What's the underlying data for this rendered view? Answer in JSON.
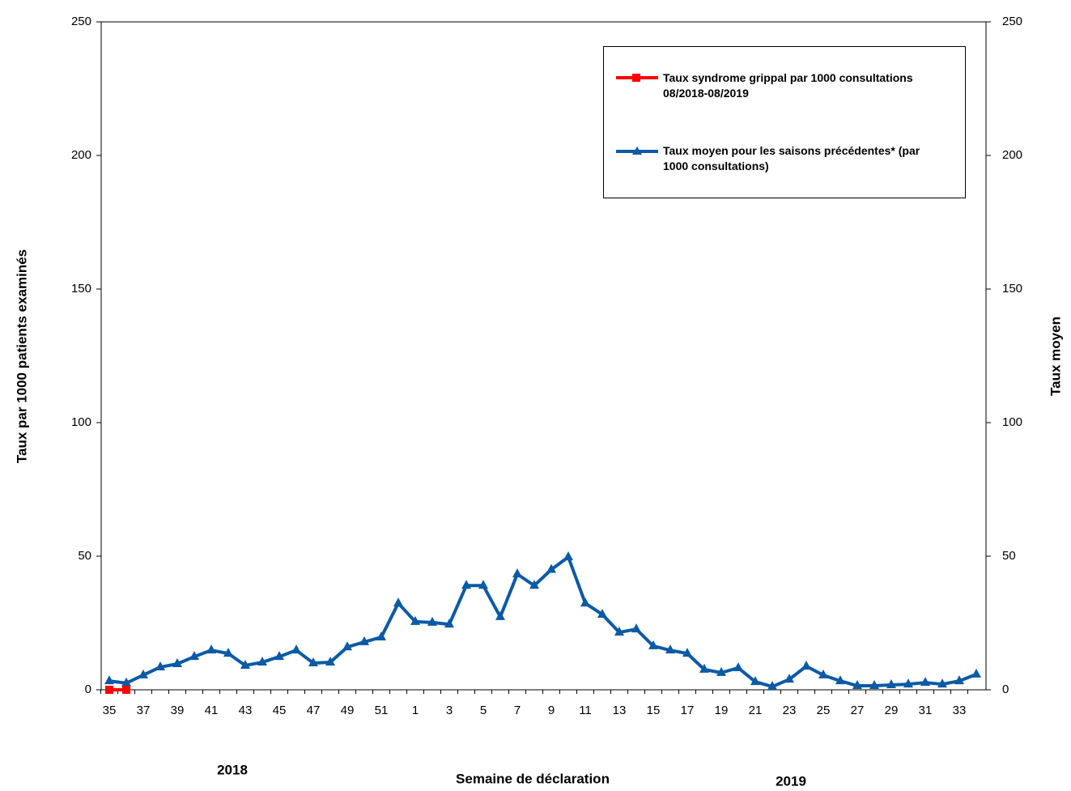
{
  "chart_data": {
    "type": "line",
    "y_label": "Taux par 1000 patients examinés",
    "y2_label": "Taux moyen",
    "x_label": "Semaine de déclaration",
    "annotations": [
      "2018",
      "2019"
    ],
    "categories": [
      "35",
      null,
      "37",
      null,
      "39",
      null,
      "41",
      null,
      "43",
      null,
      "45",
      null,
      "47",
      null,
      "49",
      null,
      "51",
      null,
      "1",
      null,
      "3",
      null,
      "5",
      null,
      "7",
      null,
      "9",
      null,
      "11",
      null,
      "13",
      null,
      "15",
      null,
      "17",
      null,
      "19",
      null,
      "21",
      null,
      "23",
      null,
      "25",
      null,
      "27",
      null,
      "29",
      null,
      "31",
      null,
      "33",
      null
    ],
    "series": [
      {
        "name": "Taux syndrome grippal par 1000 consultations 08/2018-08/2019",
        "color": "#ff0000",
        "marker": "square",
        "values": [
          0,
          0,
          null,
          null,
          null,
          null,
          null,
          null,
          null,
          null,
          null,
          null,
          null,
          null,
          null,
          null,
          null,
          null,
          null,
          null,
          null,
          null,
          null,
          null,
          null,
          null,
          null,
          null,
          null,
          null,
          null,
          null,
          null,
          null,
          null,
          null,
          null,
          null,
          null,
          null,
          null,
          null,
          null,
          null,
          null,
          null,
          null,
          null,
          null,
          null,
          null,
          null
        ]
      },
      {
        "name": "Taux moyen pour les saisons précédentes* (par 1000 consultations)",
        "color": "#0b5aa5",
        "marker": "triangle",
        "values": [
          3.3,
          2.5,
          5.5,
          8.5,
          9.7,
          12.4,
          14.8,
          13.6,
          9.1,
          10.3,
          12.4,
          14.8,
          10,
          10.3,
          16,
          17.9,
          19.7,
          32.4,
          25.5,
          25.2,
          24.5,
          39,
          39,
          27.3,
          43.3,
          39,
          45,
          49.7,
          32.4,
          28.2,
          21.5,
          22.7,
          16.4,
          14.8,
          13.6,
          7.6,
          6.4,
          8.2,
          3,
          1.2,
          3.9,
          8.8,
          5.5,
          3.3,
          1.5,
          1.5,
          1.8,
          2.1,
          2.7,
          2.1,
          3.3,
          5.8
        ]
      }
    ],
    "ylim": [
      0,
      250
    ],
    "yticks": [
      0,
      50,
      100,
      150,
      200,
      250
    ],
    "y2lim": [
      0,
      250
    ],
    "y2ticks": [
      0,
      50,
      100,
      150,
      200,
      250
    ],
    "grid": false
  }
}
